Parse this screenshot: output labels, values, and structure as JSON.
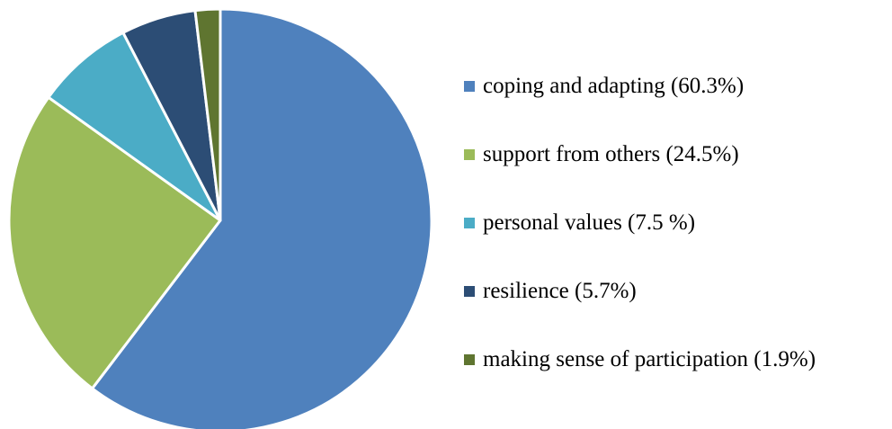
{
  "chart_data": {
    "type": "pie",
    "title": "",
    "legend_position": "right",
    "slices": [
      {
        "label": "coping and adapting (60.3%)",
        "value": 60.3,
        "color": "#4f81bd"
      },
      {
        "label": "support from others (24.5%)",
        "value": 24.5,
        "color": "#9bbb59"
      },
      {
        "label": "personal values (7.5 %)",
        "value": 7.5,
        "color": "#4bacc6"
      },
      {
        "label": "resilience (5.7%)",
        "value": 5.7,
        "color": "#2c4d75"
      },
      {
        "label": "making sense of participation (1.9%)",
        "value": 1.9,
        "color": "#5f7530"
      }
    ]
  }
}
